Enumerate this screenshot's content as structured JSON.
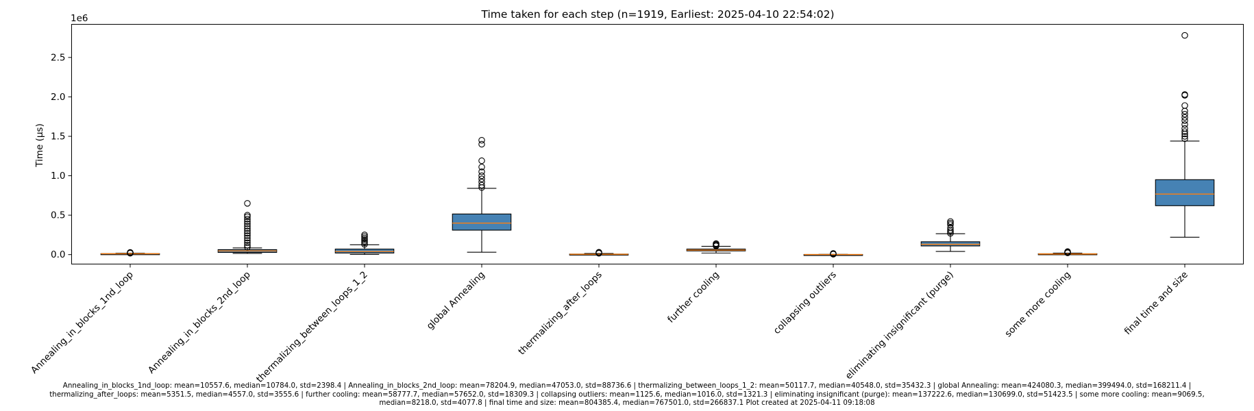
{
  "chart_data": {
    "type": "box",
    "title": "Time taken for each step (n=1919, Earliest: 2025-04-10 22:54:02)",
    "ylabel": "Time (µs)",
    "xlabel": "",
    "y_offset_label": "1e6",
    "ylim": [
      -120000,
      2920000
    ],
    "yticks": [
      0,
      500000,
      1000000,
      1500000,
      2000000,
      2500000
    ],
    "ytick_labels": [
      "0.0",
      "0.5",
      "1.0",
      "1.5",
      "2.0",
      "2.5"
    ],
    "grid": false,
    "box_color": "#4682b4",
    "median_color": "#ff7f0e",
    "categories": [
      "Annealing_in_blocks_1nd_loop",
      "Annealing_in_blocks_2nd_loop",
      "thermalizing_between_loops_1_2",
      "global Annealing",
      "thermalizing_after_loops",
      "further cooling",
      "collapsing outliers",
      "eliminating insignificant (purge)",
      "some more cooling",
      "final time and size"
    ],
    "boxes": [
      {
        "whislo": 5000,
        "q1": 9000,
        "med": 10784,
        "q3": 12000,
        "whishi": 17000,
        "fliers": [
          18000,
          20000,
          22000,
          25000,
          28000
        ]
      },
      {
        "whislo": 15000,
        "q1": 28000,
        "med": 47053,
        "q3": 63000,
        "whishi": 85000,
        "fliers": [
          95000,
          120000,
          150000,
          180000,
          210000,
          240000,
          270000,
          300000,
          330000,
          360000,
          390000,
          420000,
          450000,
          480000,
          500000,
          650000
        ]
      },
      {
        "whislo": 2000,
        "q1": 20000,
        "med": 40548,
        "q3": 70000,
        "whishi": 125000,
        "fliers": [
          130000,
          150000,
          170000,
          190000,
          210000,
          230000,
          250000
        ]
      },
      {
        "whislo": 30000,
        "q1": 310000,
        "med": 399494,
        "q3": 515000,
        "whishi": 840000,
        "fliers": [
          850000,
          880000,
          920000,
          960000,
          1000000,
          1050000,
          1110000,
          1190000,
          1400000,
          1450000
        ]
      },
      {
        "whislo": 1000,
        "q1": 2500,
        "med": 4557,
        "q3": 7000,
        "whishi": 14000,
        "fliers": [
          17000,
          20000,
          24000,
          30000
        ]
      },
      {
        "whislo": 20000,
        "q1": 47000,
        "med": 57652,
        "q3": 70000,
        "whishi": 105000,
        "fliers": [
          110000,
          120000,
          130000,
          140000
        ]
      },
      {
        "whislo": 0,
        "q1": 400,
        "med": 1016,
        "q3": 1700,
        "whishi": 3500,
        "fliers": [
          5000,
          9000,
          15000
        ]
      },
      {
        "whislo": 40000,
        "q1": 110000,
        "med": 130699,
        "q3": 163000,
        "whishi": 265000,
        "fliers": [
          270000,
          290000,
          310000,
          340000,
          380000,
          400000,
          420000
        ]
      },
      {
        "whislo": 3000,
        "q1": 6000,
        "med": 8218,
        "q3": 11000,
        "whishi": 18000,
        "fliers": [
          22000,
          27000,
          32000,
          38000
        ]
      },
      {
        "whislo": 220000,
        "q1": 620000,
        "med": 767501,
        "q3": 950000,
        "whishi": 1440000,
        "fliers": [
          1470000,
          1500000,
          1530000,
          1560000,
          1600000,
          1650000,
          1700000,
          1740000,
          1780000,
          1820000,
          1890000,
          2020000,
          2030000,
          2780000
        ]
      }
    ]
  },
  "footer": {
    "line1": "Annealing_in_blocks_1nd_loop: mean=10557.6, median=10784.0, std=2398.4 | Annealing_in_blocks_2nd_loop: mean=78204.9, median=47053.0, std=88736.6 | thermalizing_between_loops_1_2: mean=50117.7, median=40548.0, std=35432.3 | global Annealing: mean=424080.3, median=399494.0, std=168211.4 |",
    "line2": "thermalizing_after_loops: mean=5351.5, median=4557.0, std=3555.6 | further cooling: mean=58777.7, median=57652.0, std=18309.3 | collapsing outliers: mean=1125.6, median=1016.0, std=1321.3 | eliminating insignificant (purge): mean=137222.6, median=130699.0, std=51423.5 | some more cooling: mean=9069.5,",
    "line3": "median=8218.0, std=4077.8 | final time and size: mean=804385.4, median=767501.0, std=266837.1    Plot created at 2025-04-11 09:18:08"
  }
}
